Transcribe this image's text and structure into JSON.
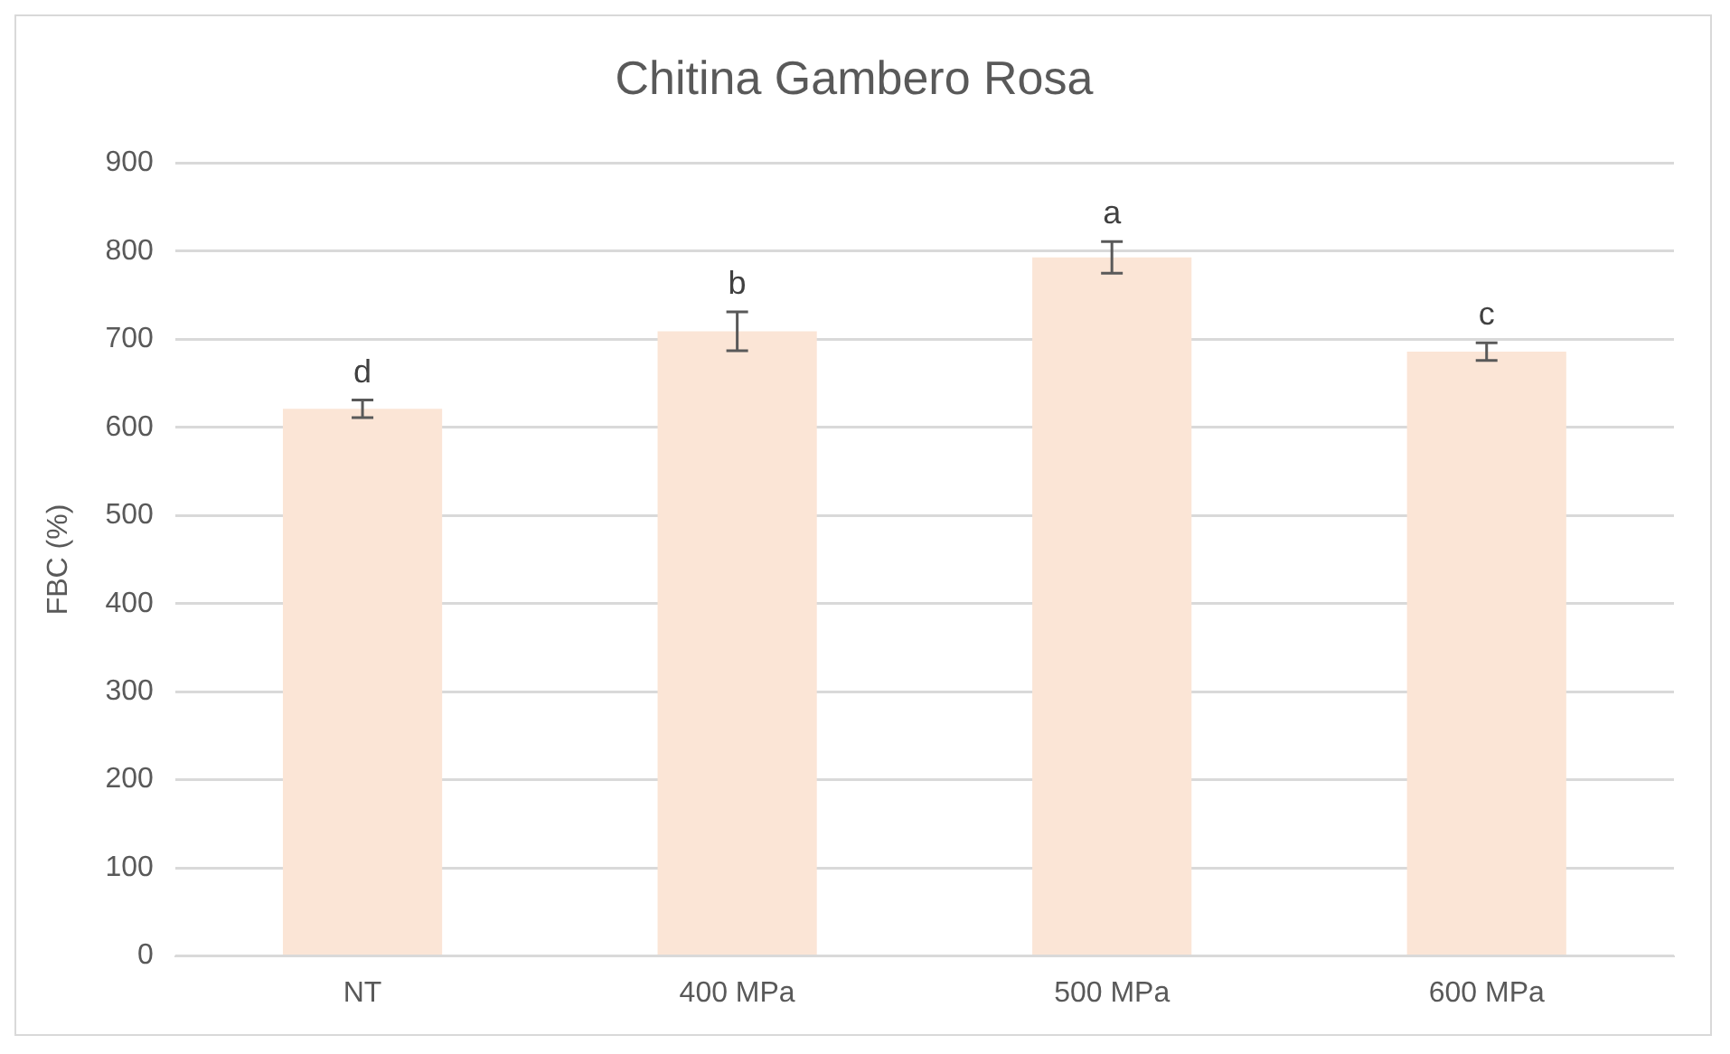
{
  "chart_data": {
    "type": "bar",
    "title": "Chitina Gambero Rosa",
    "ylabel": "FBC (%)",
    "categories": [
      "NT",
      "400 MPa",
      "500 MPa",
      "600 MPa"
    ],
    "values": [
      621,
      709,
      793,
      686
    ],
    "errors": [
      10,
      22,
      18,
      10
    ],
    "color": "#fbe5d6",
    "ylim": [
      0,
      900
    ],
    "yticks": [
      0,
      100,
      200,
      300,
      400,
      500,
      600,
      700,
      800,
      900
    ],
    "grid": "y",
    "legend": false,
    "annotations": [
      {
        "text": "d",
        "x": "NT",
        "y": 621
      },
      {
        "text": "b",
        "x": "400 MPa",
        "y": 709
      },
      {
        "text": "a",
        "x": "500 MPa",
        "y": 793
      },
      {
        "text": "c",
        "x": "600 MPa",
        "y": 686
      }
    ]
  }
}
